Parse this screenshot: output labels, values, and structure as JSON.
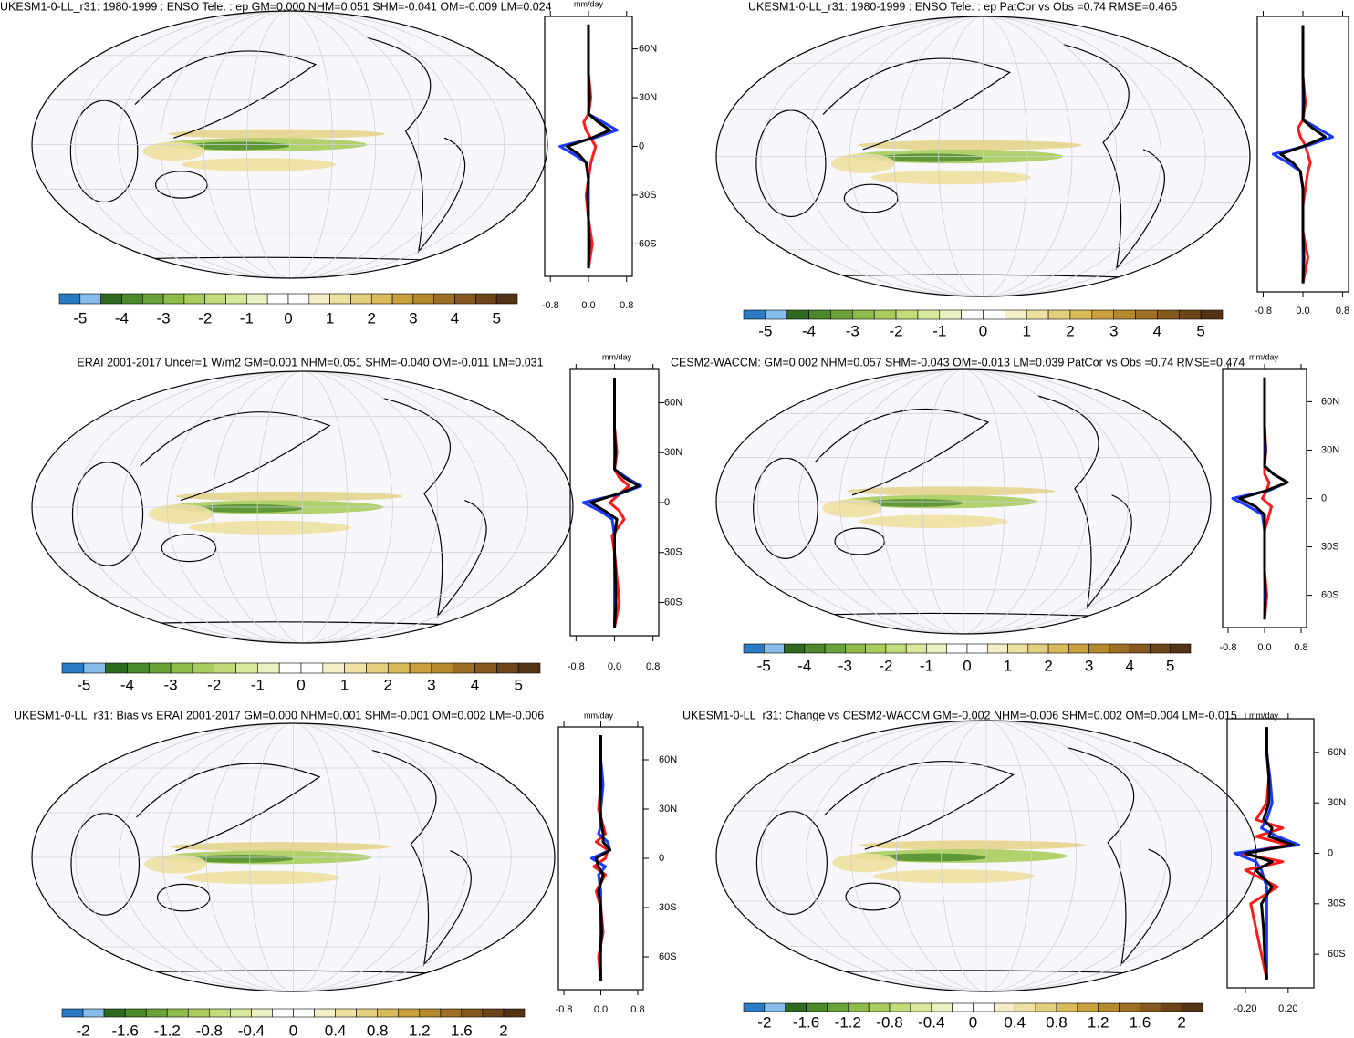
{
  "colorbar_colors": [
    "#2a7bc4",
    "#85bce9",
    "#2d6a1f",
    "#4a8a2a",
    "#6aa23a",
    "#8fbb4a",
    "#a9cc5c",
    "#c3dc7a",
    "#d8e89c",
    "#eaf2c4",
    "#ffffff",
    "#ffffff",
    "#f5efc8",
    "#eee0a0",
    "#e4cf7e",
    "#d9bb5c",
    "#c9a03c",
    "#b58a2c",
    "#9c6f24",
    "#86591e",
    "#6e4519",
    "#553315"
  ],
  "panels": [
    {
      "title": "UKESM1-0-LL_r31: 1980-1999 : ENSO Tele. : ep GM=0.000 NHM=0.051 SHM=-0.041 OM=-0.009 LM=0.024",
      "colorbar_labels": [
        -5,
        -4,
        -3,
        -2,
        -1,
        0,
        1,
        2,
        3,
        4,
        5
      ],
      "zonal": {
        "unit": "mm/day",
        "xlim": [
          -0.92,
          0.92
        ],
        "xticks": [
          -0.8,
          {
            "value": 0,
            "label": "0.0"
          },
          0.8
        ],
        "ylim": [
          -80,
          80
        ],
        "yticks": [
          {
            "value": 60,
            "label": "60N"
          },
          {
            "value": 30,
            "label": "30N"
          },
          0,
          {
            "value": -30,
            "label": "30S"
          },
          {
            "value": -60,
            "label": "60S"
          }
        ],
        "lat": [
          -75,
          -60,
          -45,
          -30,
          -20,
          -10,
          -5,
          0,
          5,
          10,
          15,
          20,
          30,
          45,
          60,
          75
        ],
        "series": [
          {
            "color": "#ff1a1a",
            "values": [
              0,
              0.08,
              0,
              -0.05,
              0,
              0.05,
              0.1,
              0.15,
              0.05,
              -0.05,
              -0.1,
              0,
              0.05,
              0,
              0,
              0
            ]
          },
          {
            "color": "#1a3aff",
            "values": [
              0,
              0,
              0,
              0,
              0,
              -0.05,
              -0.3,
              -0.6,
              0.1,
              0.6,
              0.3,
              0,
              0,
              0,
              0,
              0
            ]
          },
          {
            "color": "#000000",
            "values": [
              0,
              0.02,
              0,
              -0.02,
              0,
              -0.05,
              -0.2,
              -0.45,
              0.05,
              0.45,
              0.2,
              0,
              0.02,
              0,
              0,
              0
            ]
          }
        ]
      }
    },
    {
      "title": "UKESM1-0-LL_r31: 1980-1999 : ENSO Tele. : ep PatCor vs Obs =0.74 RMSE=0.465",
      "colorbar_labels": [
        -5,
        -4,
        -3,
        -2,
        -1,
        0,
        1,
        2,
        3,
        4,
        5
      ],
      "zonal": {
        "xlim": [
          -0.92,
          0.92
        ],
        "xticks": [
          -0.8,
          {
            "value": 0,
            "label": "0.0"
          },
          0.8
        ],
        "ylim": [
          -80,
          80
        ],
        "lat": [
          -75,
          -60,
          -45,
          -30,
          -20,
          -10,
          -5,
          0,
          5,
          10,
          15,
          20,
          30,
          45,
          60,
          75
        ],
        "series": [
          {
            "color": "#ff1a1a",
            "values": [
              0,
              0.1,
              0,
              0,
              0.05,
              0.1,
              0.15,
              0.1,
              0.05,
              -0.05,
              -0.1,
              0,
              0.05,
              0,
              0,
              0
            ]
          },
          {
            "color": "#1a3aff",
            "values": [
              0,
              0,
              0,
              0,
              0,
              -0.05,
              -0.3,
              -0.6,
              0.1,
              0.6,
              0.3,
              0,
              0,
              0,
              0,
              0
            ]
          },
          {
            "color": "#000000",
            "values": [
              0,
              0.02,
              0,
              0,
              0,
              -0.05,
              -0.2,
              -0.45,
              0.05,
              0.45,
              0.2,
              0,
              0.02,
              0,
              0,
              0
            ]
          }
        ]
      }
    },
    {
      "title": "ERAI 2001-2017 Uncer=1 W/m2 GM=0.001 NHM=0.051 SHM=-0.040 OM=-0.011 LM=0.031",
      "colorbar_labels": [
        -5,
        -4,
        -3,
        -2,
        -1,
        0,
        1,
        2,
        3,
        4,
        5
      ],
      "zonal": {
        "unit": "mm/day",
        "xlim": [
          -0.92,
          0.92
        ],
        "xticks": [
          -0.8,
          {
            "value": 0,
            "label": "0.0"
          },
          0.8
        ],
        "ylim": [
          -80,
          80
        ],
        "yticks": [
          {
            "value": 60,
            "label": "60N"
          },
          {
            "value": 30,
            "label": "30N"
          },
          0,
          {
            "value": -30,
            "label": "30S"
          },
          {
            "value": -60,
            "label": "60S"
          }
        ],
        "lat": [
          -75,
          -60,
          -45,
          -30,
          -20,
          -10,
          -5,
          0,
          5,
          10,
          15,
          20,
          30,
          45,
          60,
          75
        ],
        "series": [
          {
            "color": "#ff1a1a",
            "values": [
              0,
              0.1,
              0.05,
              0,
              -0.05,
              0.2,
              0.1,
              -0.1,
              0.1,
              0.3,
              0.1,
              0,
              0.05,
              0,
              0,
              0
            ]
          },
          {
            "color": "#1a3aff",
            "values": [
              0,
              0,
              0,
              0,
              0,
              -0.05,
              -0.3,
              -0.65,
              0.1,
              0.55,
              0.25,
              0,
              0,
              0,
              0,
              0
            ]
          },
          {
            "color": "#000000",
            "values": [
              0,
              0.03,
              0.02,
              0,
              0,
              0.05,
              -0.2,
              -0.5,
              0.05,
              0.5,
              0.2,
              0,
              0.02,
              0,
              0,
              0
            ]
          }
        ]
      }
    },
    {
      "title": "CESM2-WACCM: GM=0.002 NHM=0.057 SHM=-0.043 OM=-0.013 LM=0.039 PatCor vs Obs =0.74 RMSE=0.474",
      "colorbar_labels": [
        -5,
        -4,
        -3,
        -2,
        -1,
        0,
        1,
        2,
        3,
        4,
        5
      ],
      "zonal": {
        "unit": "mm/day",
        "xlim": [
          -0.92,
          0.92
        ],
        "xticks": [
          -0.8,
          {
            "value": 0,
            "label": "0.0"
          },
          0.8
        ],
        "ylim": [
          -80,
          80
        ],
        "yticks": [
          {
            "value": 60,
            "label": "60N"
          },
          {
            "value": 30,
            "label": "30N"
          },
          0,
          {
            "value": -30,
            "label": "30S"
          },
          {
            "value": -60,
            "label": "60S"
          }
        ],
        "lat": [
          -75,
          -60,
          -45,
          -30,
          -20,
          -10,
          -5,
          0,
          5,
          10,
          15,
          20,
          30,
          45,
          60,
          75
        ],
        "series": [
          {
            "color": "#ff1a1a",
            "values": [
              0,
              0.05,
              0,
              0,
              0,
              0.1,
              0.15,
              -0.05,
              0.05,
              0.1,
              0,
              0,
              0.03,
              0,
              0,
              0
            ]
          },
          {
            "color": "#1a3aff",
            "values": [
              0,
              0,
              0,
              0,
              0,
              -0.05,
              -0.35,
              -0.7,
              0.1,
              0.5,
              0.2,
              0,
              0,
              0,
              0,
              0
            ]
          },
          {
            "color": "#000000",
            "values": [
              0,
              0.02,
              0,
              0,
              0,
              0,
              -0.2,
              -0.55,
              0.05,
              0.5,
              0.2,
              0,
              0.02,
              0,
              0,
              0
            ]
          }
        ]
      }
    },
    {
      "title": "UKESM1-0-LL_r31: Bias vs ERAI 2001-2017 GM=0.000 NHM=0.001 SHM=-0.001 OM=0.002 LM=-0.006",
      "colorbar_labels": [
        -2,
        -1.6,
        -1.2,
        -0.8,
        -0.4,
        0,
        0.4,
        0.8,
        1.2,
        1.6,
        2
      ],
      "zonal": {
        "unit": "mm/day",
        "xlim": [
          -0.92,
          0.92
        ],
        "xticks": [
          -0.8,
          {
            "value": 0,
            "label": "0.0"
          },
          0.8
        ],
        "ylim": [
          -80,
          80
        ],
        "yticks": [
          {
            "value": 60,
            "label": "60N"
          },
          {
            "value": 30,
            "label": "30N"
          },
          0,
          {
            "value": -30,
            "label": "30S"
          },
          {
            "value": -60,
            "label": "60S"
          }
        ],
        "lat": [
          -75,
          -60,
          -45,
          -30,
          -20,
          -10,
          -5,
          0,
          5,
          10,
          15,
          20,
          30,
          45,
          60,
          75
        ],
        "series": [
          {
            "color": "#ff1a1a",
            "values": [
              0,
              -0.05,
              0.05,
              0,
              -0.1,
              0.1,
              -0.15,
              0.1,
              0.15,
              -0.1,
              0.1,
              0.05,
              -0.05,
              0,
              0,
              0
            ]
          },
          {
            "color": "#1a3aff",
            "values": [
              0,
              0,
              0,
              0,
              0,
              -0.05,
              0.1,
              -0.2,
              0.2,
              0.15,
              -0.05,
              0,
              0,
              0.05,
              0,
              0
            ]
          },
          {
            "color": "#000000",
            "values": [
              0,
              -0.02,
              0.02,
              0,
              -0.05,
              0.05,
              -0.05,
              -0.1,
              0.2,
              0.05,
              0.05,
              0.02,
              -0.02,
              0,
              0,
              0
            ]
          }
        ]
      }
    },
    {
      "title": "UKESM1-0-LL_r31: Change vs CESM2-WACCM GM=-0.002 NHM=-0.006 SHM=0.002 OM=0.004 LM=-0.015",
      "colorbar_labels": [
        -2,
        -1.6,
        -1.2,
        -0.8,
        -0.4,
        0,
        0.4,
        0.8,
        1.2,
        1.6,
        2
      ],
      "zonal": {
        "unit": "mm/day",
        "xlim": [
          -0.37,
          0.44
        ],
        "xticks": [
          {
            "value": -0.2,
            "label": "-0.20"
          },
          {
            "value": 0.2,
            "label": "0.20"
          }
        ],
        "ylim": [
          -80,
          80
        ],
        "yticks": [
          {
            "value": 60,
            "label": "60N"
          },
          {
            "value": 30,
            "label": "30N"
          },
          0,
          {
            "value": -30,
            "label": "30S"
          },
          {
            "value": -60,
            "label": "60S"
          }
        ],
        "lat": [
          -75,
          -60,
          -45,
          -30,
          -20,
          -10,
          -5,
          0,
          5,
          10,
          15,
          20,
          30,
          45,
          60,
          75
        ],
        "series": [
          {
            "color": "#ff1a1a",
            "values": [
              0,
              -0.05,
              -0.1,
              -0.15,
              0.1,
              -0.2,
              0.15,
              -0.25,
              0.2,
              -0.1,
              0.15,
              -0.1,
              0,
              0.02,
              0,
              0
            ]
          },
          {
            "color": "#1a3aff",
            "values": [
              0,
              0,
              0,
              0,
              0,
              -0.05,
              -0.1,
              -0.3,
              0.3,
              0.1,
              -0.05,
              0,
              0.05,
              0.03,
              0,
              0
            ]
          },
          {
            "color": "#000000",
            "values": [
              0,
              -0.02,
              -0.03,
              -0.05,
              0.05,
              -0.1,
              0.05,
              -0.2,
              0.25,
              0.02,
              0.05,
              -0.03,
              0.02,
              0.02,
              0,
              0
            ]
          }
        ]
      }
    }
  ]
}
